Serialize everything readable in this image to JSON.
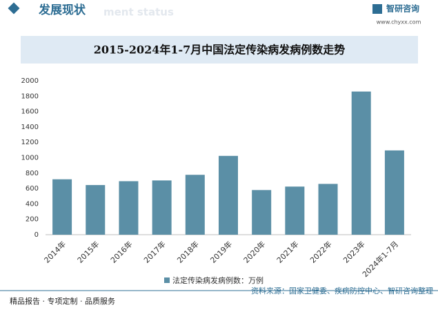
{
  "header": {
    "title": "发展现状",
    "subtitle": "ment status",
    "brand": "智研咨询",
    "url": "www.chyxx.com"
  },
  "chart_data": {
    "type": "bar",
    "title": "2015-2024年1-7月中国法定传染病发病例数走势",
    "categories": [
      "2014年",
      "2015年",
      "2016年",
      "2017年",
      "2018年",
      "2019年",
      "2020年",
      "2021年",
      "2022年",
      "2023年",
      "2024年1-7月"
    ],
    "series": [
      {
        "name": "法定传染病发病例数：万例",
        "color": "#5b8fa6",
        "values": [
          720,
          645,
          695,
          705,
          778,
          1024,
          580,
          625,
          660,
          1860,
          1095
        ]
      }
    ],
    "ylim": [
      0,
      2000
    ],
    "yticks": [
      0,
      200,
      400,
      600,
      800,
      1000,
      1200,
      1400,
      1600,
      1800,
      2000
    ]
  },
  "footer": {
    "left": "精品报告 · 专项定制 · 品质服务",
    "source": "资料来源：国家卫健委、疾病防控中心、智研咨询整理"
  }
}
